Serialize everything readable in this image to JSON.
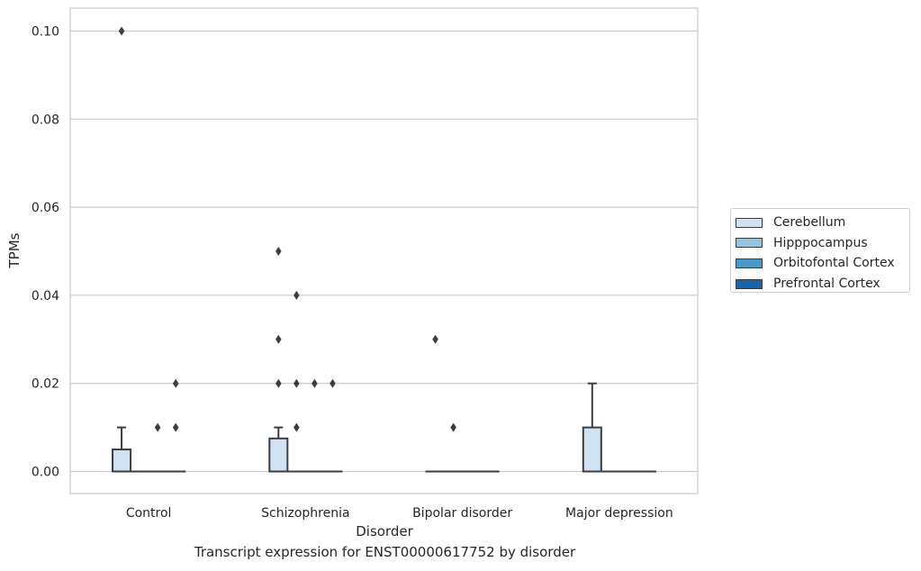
{
  "chart_data": {
    "type": "box",
    "title": "Transcript expression for ENST00000617752 by disorder",
    "xlabel": "Disorder",
    "ylabel": "TPMs",
    "ylim": [
      -0.005,
      0.105
    ],
    "yticks": [
      0.0,
      0.02,
      0.04,
      0.06,
      0.08,
      0.1
    ],
    "ytick_labels": [
      "0.00",
      "0.02",
      "0.04",
      "0.06",
      "0.08",
      "0.10"
    ],
    "categories": [
      "Control",
      "Schizophrenia",
      "Bipolar disorder",
      "Major depression"
    ],
    "grid": "horizontal",
    "legend_position": "right",
    "series": [
      {
        "name": "Cerebellum",
        "color": "#d0e1f2",
        "boxes": [
          {
            "q1": 0.0,
            "median": 0.0,
            "q3": 0.005,
            "whisker_low": 0.0,
            "whisker_high": 0.01,
            "outliers": [
              0.1
            ]
          },
          {
            "q1": 0.0,
            "median": 0.0,
            "q3": 0.0075,
            "whisker_low": 0.0,
            "whisker_high": 0.01,
            "outliers": [
              0.05,
              0.03,
              0.02
            ]
          },
          {
            "q1": 0.0,
            "median": 0.0,
            "q3": 0.0,
            "whisker_low": 0.0,
            "whisker_high": 0.0,
            "outliers": [
              0.03
            ]
          },
          {
            "q1": 0.0,
            "median": 0.0,
            "q3": 0.01,
            "whisker_low": 0.0,
            "whisker_high": 0.02,
            "outliers": []
          }
        ]
      },
      {
        "name": "Hipppocampus",
        "color": "#94c4df",
        "boxes": [
          {
            "q1": 0.0,
            "median": 0.0,
            "q3": 0.0,
            "whisker_low": 0.0,
            "whisker_high": 0.0,
            "outliers": []
          },
          {
            "q1": 0.0,
            "median": 0.0,
            "q3": 0.0,
            "whisker_low": 0.0,
            "whisker_high": 0.0,
            "outliers": [
              0.04,
              0.02,
              0.01
            ]
          },
          {
            "q1": 0.0,
            "median": 0.0,
            "q3": 0.0,
            "whisker_low": 0.0,
            "whisker_high": 0.0,
            "outliers": [
              0.01
            ]
          },
          {
            "q1": 0.0,
            "median": 0.0,
            "q3": 0.0,
            "whisker_low": 0.0,
            "whisker_high": 0.0,
            "outliers": []
          }
        ]
      },
      {
        "name": "Orbitofontal Cortex",
        "color": "#4a98c9",
        "boxes": [
          {
            "q1": 0.0,
            "median": 0.0,
            "q3": 0.0,
            "whisker_low": 0.0,
            "whisker_high": 0.0,
            "outliers": [
              0.01
            ]
          },
          {
            "q1": 0.0,
            "median": 0.0,
            "q3": 0.0,
            "whisker_low": 0.0,
            "whisker_high": 0.0,
            "outliers": [
              0.02
            ]
          },
          {
            "q1": 0.0,
            "median": 0.0,
            "q3": 0.0,
            "whisker_low": 0.0,
            "whisker_high": 0.0,
            "outliers": []
          },
          {
            "q1": 0.0,
            "median": 0.0,
            "q3": 0.0,
            "whisker_low": 0.0,
            "whisker_high": 0.0,
            "outliers": []
          }
        ]
      },
      {
        "name": "Prefrontal Cortex",
        "color": "#1764ab",
        "boxes": [
          {
            "q1": 0.0,
            "median": 0.0,
            "q3": 0.0,
            "whisker_low": 0.0,
            "whisker_high": 0.0,
            "outliers": [
              0.02,
              0.01
            ]
          },
          {
            "q1": 0.0,
            "median": 0.0,
            "q3": 0.0,
            "whisker_low": 0.0,
            "whisker_high": 0.0,
            "outliers": [
              0.02
            ]
          },
          {
            "q1": 0.0,
            "median": 0.0,
            "q3": 0.0,
            "whisker_low": 0.0,
            "whisker_high": 0.0,
            "outliers": []
          },
          {
            "q1": 0.0,
            "median": 0.0,
            "q3": 0.0,
            "whisker_low": 0.0,
            "whisker_high": 0.0,
            "outliers": []
          }
        ]
      }
    ]
  }
}
